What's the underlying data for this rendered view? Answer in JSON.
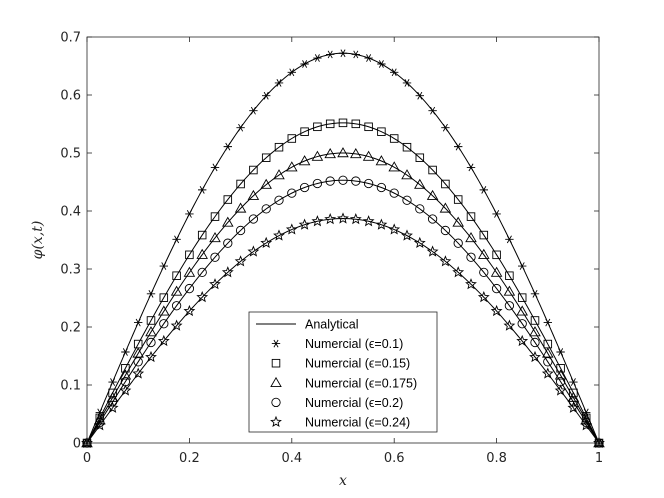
{
  "chart_data": {
    "type": "line",
    "xlabel": "x",
    "ylabel": "φ(x,t)",
    "xlim": [
      0,
      1
    ],
    "ylim": [
      0,
      0.7
    ],
    "xticks": [
      0,
      0.2,
      0.4,
      0.6,
      0.8,
      1
    ],
    "xtick_labels": [
      "0",
      "0.2",
      "0.4",
      "0.6",
      "0.8",
      "1"
    ],
    "yticks": [
      0,
      0.1,
      0.2,
      0.3,
      0.4,
      0.5,
      0.6,
      0.7
    ],
    "ytick_labels": [
      "0",
      "0.1",
      "0.2",
      "0.3",
      "0.4",
      "0.5",
      "0.6",
      "0.7"
    ],
    "grid": false,
    "legend_position": "bottom-center",
    "legend": {
      "line_label": "Analytical",
      "entries": [
        {
          "label": "Numercial (ϵ=0.1)",
          "marker": "asterisk"
        },
        {
          "label": "Numercial (ϵ=0.15)",
          "marker": "square"
        },
        {
          "label": "Numercial (ϵ=0.175)",
          "marker": "triangle"
        },
        {
          "label": "Numercial (ϵ=0.2)",
          "marker": "circle"
        },
        {
          "label": "Numercial (ϵ=0.24)",
          "marker": "star"
        }
      ]
    },
    "curve_shape": "sin(pi*x)",
    "marker_x": [
      0.0,
      0.025,
      0.05,
      0.075,
      0.1,
      0.125,
      0.15,
      0.175,
      0.2,
      0.225,
      0.25,
      0.275,
      0.3,
      0.325,
      0.35,
      0.375,
      0.4,
      0.425,
      0.45,
      0.475,
      0.5,
      0.525,
      0.55,
      0.575,
      0.6,
      0.625,
      0.65,
      0.675,
      0.7,
      0.725,
      0.75,
      0.775,
      0.8,
      0.825,
      0.85,
      0.875,
      0.9,
      0.925,
      0.95,
      0.975,
      1.0
    ],
    "series": [
      {
        "name": "Numercial (ϵ=0.1)",
        "marker": "asterisk",
        "peak": 0.672
      },
      {
        "name": "Numercial (ϵ=0.15)",
        "marker": "square",
        "peak": 0.552
      },
      {
        "name": "Numercial (ϵ=0.175)",
        "marker": "triangle",
        "peak": 0.5
      },
      {
        "name": "Numercial (ϵ=0.2)",
        "marker": "circle",
        "peak": 0.453
      },
      {
        "name": "Numercial (ϵ=0.24)",
        "marker": "star",
        "peak": 0.387
      }
    ],
    "colors": {
      "line": "#000000",
      "axes": "#262626",
      "background": "#ffffff"
    }
  }
}
